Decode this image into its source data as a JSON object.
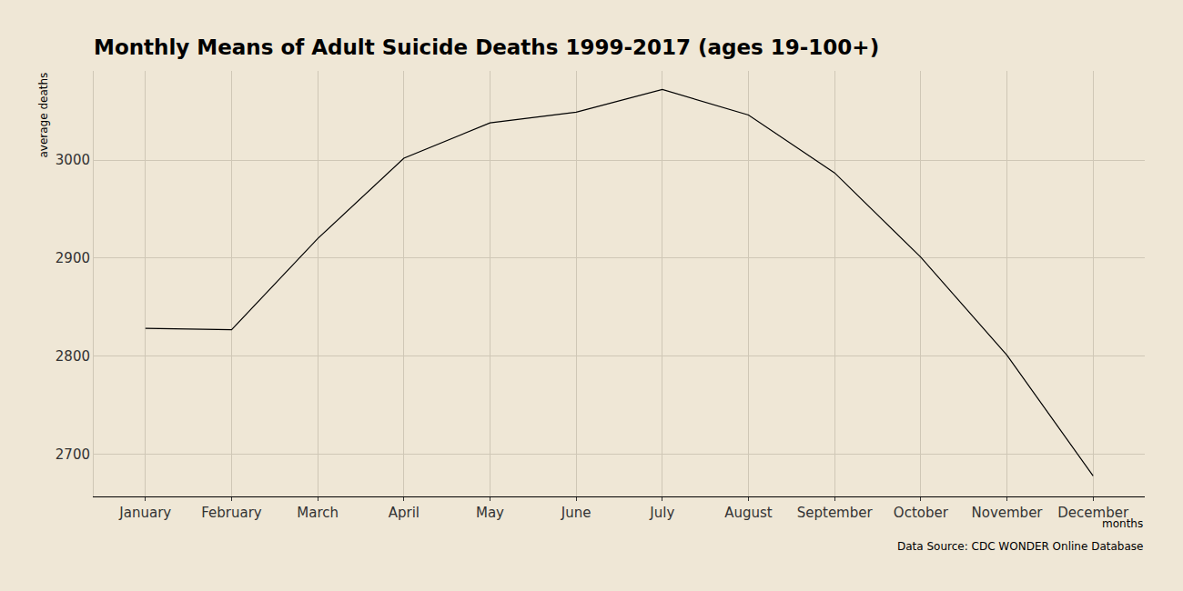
{
  "chart_data": {
    "type": "line",
    "title": "Monthly Means of Adult Suicide Deaths 1999-2017 (ages 19-100+)",
    "xlabel": "months",
    "ylabel": "average deaths",
    "annotations": [
      "Data Source: CDC WONDER Online Database"
    ],
    "categories": [
      "January",
      "February",
      "March",
      "April",
      "May",
      "June",
      "July",
      "August",
      "September",
      "October",
      "November",
      "December"
    ],
    "values": [
      2828.5,
      2827,
      2920,
      3002,
      3038,
      3049,
      3072,
      3046,
      2987,
      2901,
      2801,
      2678
    ],
    "color": "#000000",
    "ylim": [
      2657,
      3091
    ],
    "yticks": [
      2700,
      2800,
      2900,
      3000
    ],
    "grid": true
  }
}
